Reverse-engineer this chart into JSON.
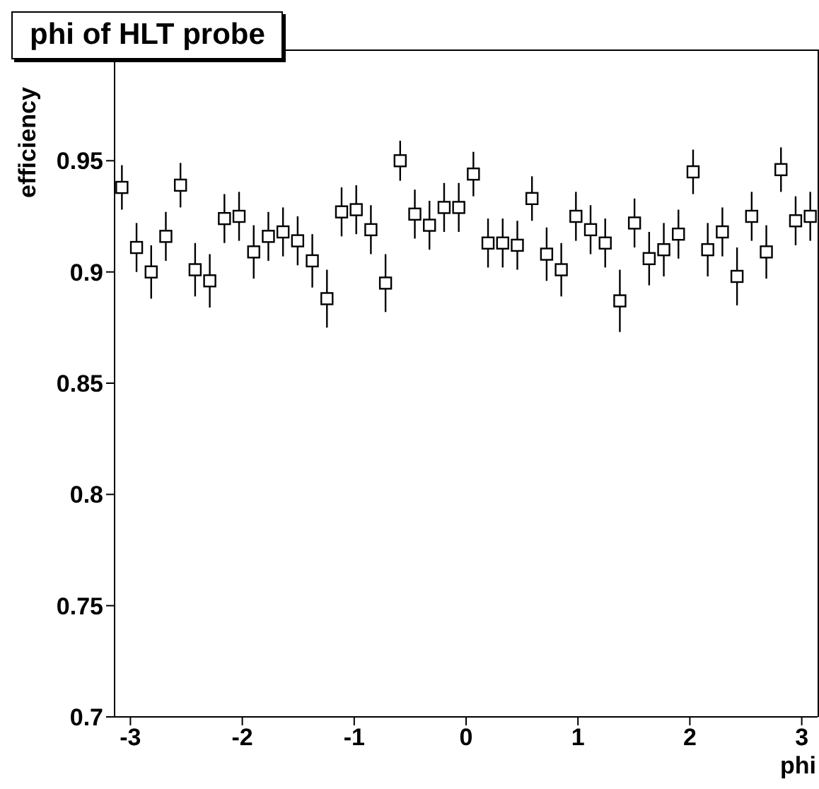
{
  "chart_data": {
    "type": "scatter",
    "title": "phi of HLT probe",
    "xlabel": "phi",
    "ylabel": "efficiency",
    "marker": "square",
    "x": [
      -3.0762,
      -2.9453,
      -2.8144,
      -2.6835,
      -2.5526,
      -2.4217,
      -2.2908,
      -2.1598,
      -2.0289,
      -1.898,
      -1.7671,
      -1.6362,
      -1.5053,
      -1.3744,
      -1.2435,
      -1.1126,
      -0.9817,
      -0.8508,
      -0.7199,
      -0.589,
      -0.4581,
      -0.3272,
      -0.1963,
      -0.0654,
      0.0654,
      0.1963,
      0.3272,
      0.4581,
      0.589,
      0.7199,
      0.8508,
      0.9817,
      1.1126,
      1.2435,
      1.3744,
      1.5053,
      1.6362,
      1.7671,
      1.898,
      2.0289,
      2.1598,
      2.2908,
      2.4217,
      2.5526,
      2.6835,
      2.8144,
      2.9453,
      3.0762
    ],
    "series": [
      {
        "color": "#000000",
        "values": [
          0.938,
          0.911,
          0.9,
          0.916,
          0.939,
          0.901,
          0.896,
          0.924,
          0.925,
          0.909,
          0.916,
          0.918,
          0.914,
          0.905,
          0.888,
          0.927,
          0.928,
          0.919,
          0.895,
          0.95,
          0.926,
          0.921,
          0.929,
          0.929,
          0.944,
          0.913,
          0.913,
          0.912,
          0.933,
          0.908,
          0.901,
          0.925,
          0.919,
          0.913,
          0.887,
          0.922,
          0.906,
          0.91,
          0.917,
          0.945,
          0.91,
          0.918,
          0.898,
          0.925,
          0.909,
          0.946,
          0.923,
          0.925
        ],
        "errors": [
          0.01,
          0.011,
          0.012,
          0.011,
          0.01,
          0.012,
          0.012,
          0.011,
          0.011,
          0.012,
          0.011,
          0.011,
          0.011,
          0.012,
          0.013,
          0.011,
          0.011,
          0.011,
          0.013,
          0.009,
          0.011,
          0.011,
          0.011,
          0.011,
          0.01,
          0.011,
          0.011,
          0.011,
          0.01,
          0.012,
          0.012,
          0.011,
          0.011,
          0.011,
          0.014,
          0.011,
          0.012,
          0.012,
          0.011,
          0.01,
          0.012,
          0.011,
          0.013,
          0.011,
          0.012,
          0.01,
          0.011,
          0.011
        ]
      }
    ],
    "xlim": [
      -3.1416,
      3.1416
    ],
    "xticks": [
      -3,
      -2,
      -1,
      0,
      1,
      2,
      3
    ],
    "ylim": [
      0.7,
      1.0
    ],
    "yticks": [
      0.7,
      0.75,
      0.8,
      0.85,
      0.9,
      0.95
    ]
  }
}
